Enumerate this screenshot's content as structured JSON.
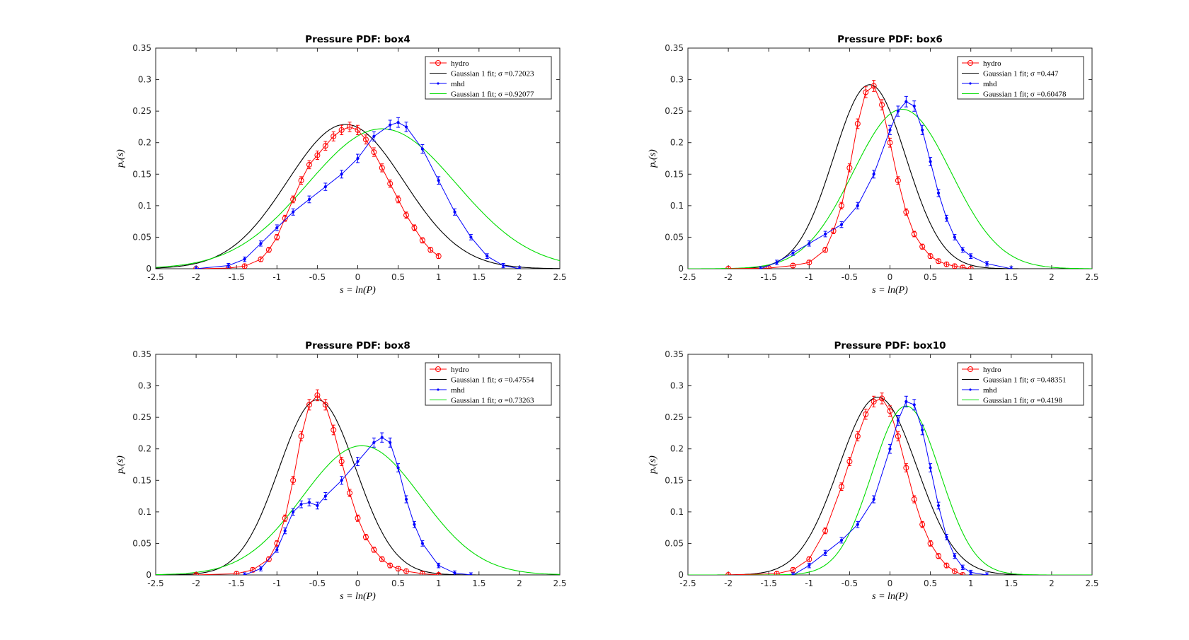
{
  "figure": {
    "panels": [
      {
        "title": "Pressure PDF: box4",
        "xlabel": "s = ln(P)",
        "ylabel": "pᵥ(s)",
        "legend": [
          "hydro",
          "Gaussian 1 fit; σ =0.72023",
          "mhd",
          "Gaussian 1 fit; σ =0.92077"
        ]
      },
      {
        "title": "Pressure PDF: box6",
        "xlabel": "s = ln(P)",
        "ylabel": "pᵥ(s)",
        "legend": [
          "hydro",
          "Gaussian 1 fit; σ =0.447",
          "mhd",
          "Gaussian 1 fit; σ =0.60478"
        ]
      },
      {
        "title": "Pressure PDF: box8",
        "xlabel": "s = ln(P)",
        "ylabel": "pᵥ(s)",
        "legend": [
          "hydro",
          "Gaussian 1 fit; σ =0.47554",
          "mhd",
          "Gaussian 1 fit; σ =0.73263"
        ]
      },
      {
        "title": "Pressure PDF: box10",
        "xlabel": "s = ln(P)",
        "ylabel": "pᵥ(s)",
        "legend": [
          "hydro",
          "Gaussian 1 fit; σ =0.48351",
          "mhd",
          "Gaussian 1 fit; σ =0.4198"
        ]
      }
    ]
  },
  "colors": {
    "hydro": "#ff0000",
    "hydro_fit": "#000000",
    "mhd": "#0000ff",
    "mhd_fit": "#00dd00"
  },
  "chart_data": [
    {
      "type": "line",
      "title": "Pressure PDF: box4",
      "xlabel": "s = ln(P)",
      "ylabel": "pᵥ(s)",
      "xlim": [
        -2.5,
        2.5
      ],
      "ylim": [
        0,
        0.35
      ],
      "xticks": [
        -2.5,
        -2,
        -1.5,
        -1,
        -0.5,
        0,
        0.5,
        1,
        1.5,
        2,
        2.5
      ],
      "yticks": [
        0,
        0.05,
        0.1,
        0.15,
        0.2,
        0.25,
        0.3,
        0.35
      ],
      "legend_position": "top-right",
      "series": [
        {
          "name": "hydro",
          "x": [
            -2.0,
            -1.6,
            -1.4,
            -1.2,
            -1.1,
            -1.0,
            -0.9,
            -0.8,
            -0.7,
            -0.6,
            -0.5,
            -0.4,
            -0.3,
            -0.2,
            -0.1,
            0.0,
            0.1,
            0.2,
            0.3,
            0.4,
            0.5,
            0.6,
            0.7,
            0.8,
            0.9,
            1.0
          ],
          "y": [
            0,
            0.001,
            0.004,
            0.015,
            0.03,
            0.05,
            0.08,
            0.11,
            0.14,
            0.165,
            0.18,
            0.195,
            0.21,
            0.22,
            0.225,
            0.22,
            0.205,
            0.185,
            0.16,
            0.135,
            0.11,
            0.085,
            0.065,
            0.045,
            0.03,
            0.02
          ]
        },
        {
          "name": "Gaussian 1 fit; σ =0.72023",
          "mu": -0.15,
          "amp": 0.229,
          "sigma": 0.72023,
          "xrange": [
            -2.5,
            2.5
          ]
        },
        {
          "name": "mhd",
          "x": [
            -2.0,
            -1.6,
            -1.4,
            -1.2,
            -1.0,
            -0.8,
            -0.6,
            -0.4,
            -0.2,
            0.0,
            0.2,
            0.4,
            0.5,
            0.6,
            0.8,
            1.0,
            1.2,
            1.4,
            1.6,
            1.8,
            2.0
          ],
          "y": [
            0,
            0.005,
            0.015,
            0.04,
            0.065,
            0.09,
            0.11,
            0.13,
            0.15,
            0.175,
            0.21,
            0.228,
            0.232,
            0.225,
            0.19,
            0.14,
            0.09,
            0.05,
            0.02,
            0.005,
            0
          ]
        },
        {
          "name": "Gaussian 1 fit; σ =0.92077",
          "mu": 0.3,
          "amp": 0.222,
          "sigma": 0.92077,
          "xrange": [
            -2.5,
            2.5
          ]
        }
      ]
    },
    {
      "type": "line",
      "title": "Pressure PDF: box6",
      "xlabel": "s = ln(P)",
      "ylabel": "pᵥ(s)",
      "xlim": [
        -2.5,
        2.5
      ],
      "ylim": [
        0,
        0.35
      ],
      "xticks": [
        -2.5,
        -2,
        -1.5,
        -1,
        -0.5,
        0,
        0.5,
        1,
        1.5,
        2,
        2.5
      ],
      "yticks": [
        0,
        0.05,
        0.1,
        0.15,
        0.2,
        0.25,
        0.3,
        0.35
      ],
      "legend_position": "top-right",
      "series": [
        {
          "name": "hydro",
          "x": [
            -2.0,
            -1.5,
            -1.2,
            -1.0,
            -0.8,
            -0.7,
            -0.6,
            -0.5,
            -0.4,
            -0.3,
            -0.2,
            -0.1,
            0.0,
            0.1,
            0.2,
            0.3,
            0.4,
            0.5,
            0.6,
            0.7,
            0.8,
            0.9,
            1.0
          ],
          "y": [
            0,
            0.001,
            0.005,
            0.01,
            0.03,
            0.06,
            0.1,
            0.16,
            0.23,
            0.28,
            0.29,
            0.26,
            0.2,
            0.14,
            0.09,
            0.055,
            0.035,
            0.02,
            0.012,
            0.007,
            0.004,
            0.002,
            0
          ]
        },
        {
          "name": "Gaussian 1 fit; σ =0.447",
          "mu": -0.25,
          "amp": 0.292,
          "sigma": 0.447,
          "xrange": [
            -2.5,
            2.5
          ]
        },
        {
          "name": "mhd",
          "x": [
            -1.6,
            -1.4,
            -1.2,
            -1.0,
            -0.8,
            -0.6,
            -0.4,
            -0.2,
            0.0,
            0.1,
            0.2,
            0.3,
            0.4,
            0.5,
            0.6,
            0.7,
            0.8,
            0.9,
            1.0,
            1.2,
            1.5
          ],
          "y": [
            0,
            0.01,
            0.025,
            0.04,
            0.055,
            0.07,
            0.1,
            0.15,
            0.22,
            0.25,
            0.265,
            0.258,
            0.22,
            0.17,
            0.12,
            0.08,
            0.05,
            0.03,
            0.02,
            0.008,
            0
          ]
        },
        {
          "name": "Gaussian 1 fit; σ =0.60478",
          "mu": 0.15,
          "amp": 0.253,
          "sigma": 0.60478,
          "xrange": [
            -2.5,
            2.5
          ]
        }
      ]
    },
    {
      "type": "line",
      "title": "Pressure PDF: box8",
      "xlabel": "s = ln(P)",
      "ylabel": "pᵥ(s)",
      "xlim": [
        -2.5,
        2.5
      ],
      "ylim": [
        0,
        0.35
      ],
      "xticks": [
        -2.5,
        -2,
        -1.5,
        -1,
        -0.5,
        0,
        0.5,
        1,
        1.5,
        2,
        2.5
      ],
      "yticks": [
        0,
        0.05,
        0.1,
        0.15,
        0.2,
        0.25,
        0.3,
        0.35
      ],
      "legend_position": "top-right",
      "series": [
        {
          "name": "hydro",
          "x": [
            -2.0,
            -1.5,
            -1.3,
            -1.1,
            -1.0,
            -0.9,
            -0.8,
            -0.7,
            -0.6,
            -0.5,
            -0.4,
            -0.3,
            -0.2,
            -0.1,
            0.0,
            0.1,
            0.2,
            0.3,
            0.4,
            0.5,
            0.6,
            0.8,
            1.0
          ],
          "y": [
            0,
            0.002,
            0.008,
            0.025,
            0.05,
            0.09,
            0.15,
            0.22,
            0.27,
            0.285,
            0.27,
            0.23,
            0.18,
            0.13,
            0.09,
            0.06,
            0.04,
            0.025,
            0.015,
            0.01,
            0.006,
            0.002,
            0
          ]
        },
        {
          "name": "Gaussian 1 fit; σ =0.47554",
          "mu": -0.5,
          "amp": 0.278,
          "sigma": 0.47554,
          "xrange": [
            -2.5,
            2.5
          ]
        },
        {
          "name": "mhd",
          "x": [
            -1.4,
            -1.2,
            -1.0,
            -0.9,
            -0.8,
            -0.7,
            -0.6,
            -0.5,
            -0.4,
            -0.2,
            0.0,
            0.2,
            0.3,
            0.4,
            0.5,
            0.6,
            0.7,
            0.8,
            1.0,
            1.2,
            1.4
          ],
          "y": [
            0,
            0.01,
            0.04,
            0.07,
            0.1,
            0.112,
            0.115,
            0.11,
            0.125,
            0.15,
            0.18,
            0.21,
            0.218,
            0.21,
            0.17,
            0.12,
            0.08,
            0.05,
            0.015,
            0.003,
            0
          ]
        },
        {
          "name": "Gaussian 1 fit; σ =0.73263",
          "mu": 0.05,
          "amp": 0.205,
          "sigma": 0.73263,
          "xrange": [
            -2.5,
            2.5
          ]
        }
      ]
    },
    {
      "type": "line",
      "title": "Pressure PDF: box10",
      "xlabel": "s = ln(P)",
      "ylabel": "pᵥ(s)",
      "xlim": [
        -2.5,
        2.5
      ],
      "ylim": [
        0,
        0.35
      ],
      "xticks": [
        -2.5,
        -2,
        -1.5,
        -1,
        -0.5,
        0,
        0.5,
        1,
        1.5,
        2,
        2.5
      ],
      "yticks": [
        0,
        0.05,
        0.1,
        0.15,
        0.2,
        0.25,
        0.3,
        0.35
      ],
      "legend_position": "top-right",
      "series": [
        {
          "name": "hydro",
          "x": [
            -2.0,
            -1.4,
            -1.2,
            -1.0,
            -0.8,
            -0.6,
            -0.5,
            -0.4,
            -0.3,
            -0.2,
            -0.1,
            0.0,
            0.1,
            0.2,
            0.3,
            0.4,
            0.5,
            0.6,
            0.7,
            0.8,
            0.9
          ],
          "y": [
            0,
            0.002,
            0.008,
            0.025,
            0.07,
            0.14,
            0.18,
            0.22,
            0.255,
            0.275,
            0.28,
            0.26,
            0.22,
            0.17,
            0.12,
            0.08,
            0.05,
            0.03,
            0.015,
            0.006,
            0
          ]
        },
        {
          "name": "Gaussian 1 fit; σ =0.48351",
          "mu": -0.15,
          "amp": 0.282,
          "sigma": 0.48351,
          "xrange": [
            -2.5,
            2.5
          ]
        },
        {
          "name": "mhd",
          "x": [
            -1.2,
            -1.0,
            -0.8,
            -0.6,
            -0.4,
            -0.2,
            0.0,
            0.1,
            0.2,
            0.3,
            0.4,
            0.5,
            0.6,
            0.7,
            0.8,
            0.9,
            1.0,
            1.2
          ],
          "y": [
            0,
            0.015,
            0.035,
            0.055,
            0.08,
            0.12,
            0.2,
            0.245,
            0.275,
            0.27,
            0.23,
            0.17,
            0.11,
            0.06,
            0.03,
            0.012,
            0.004,
            0
          ]
        },
        {
          "name": "Gaussian 1 fit; σ =0.4198",
          "mu": 0.2,
          "amp": 0.268,
          "sigma": 0.4198,
          "xrange": [
            -2.5,
            2.5
          ]
        }
      ]
    }
  ]
}
